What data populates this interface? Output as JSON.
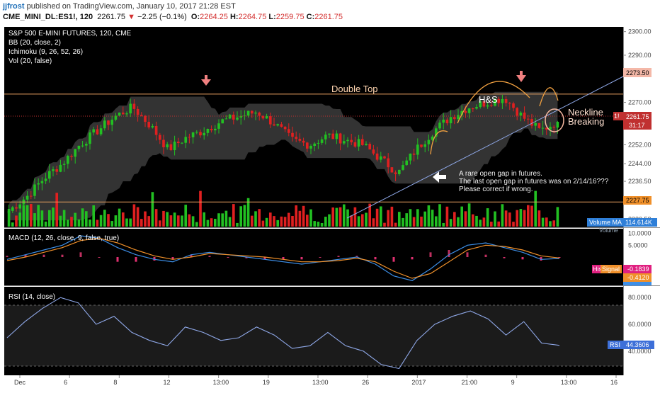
{
  "header": {
    "user": "jjfrost",
    "published": "published on TradingView.com, January 10, 2017 21:28 EST",
    "symbol": "CME_MINI_DL:ES1!, 120",
    "last": "2261.75",
    "change": "−2.25 (−0.1%)",
    "open_label": "O:",
    "open": "2264.25",
    "high_label": "H:",
    "high": "2264.75",
    "low_label": "L:",
    "low": "2259.75",
    "close_label": "C:",
    "close": "2261.75"
  },
  "legend": {
    "title": "S&P 500 E-MINI FUTURES, 120, CME",
    "bb": "BB (20, close, 2)",
    "ichimoku": "Ichimoku (9, 26, 52, 26)",
    "vol": "Vol (20, false)"
  },
  "annotations": {
    "double_top": "Double Top",
    "hs": "H&S",
    "neckline_1": "Neckline",
    "neckline_2": "Breaking",
    "gap_1": "A rare open gap in futures.",
    "gap_2": "The last open gap in futures was on 2/14/16???",
    "gap_3": "Please correct if wrong."
  },
  "price_badges": {
    "resistance": "2273.50",
    "current": "2261.75",
    "countdown": "31:17",
    "current_side": "1!",
    "support": "2227.75",
    "volume_ma_label": "Volume MA",
    "volume_ma_value": "114.614K",
    "volume_label_partial": "Volume"
  },
  "macd": {
    "title": "MACD (12, 26, close, 9, false, true)",
    "hist_label": "His",
    "signal_label": "Signal",
    "hist_value": "-0.1839",
    "signal_value": "-0.4120",
    "macd_value": "-0.5959"
  },
  "rsi": {
    "title": "RSI (14, close)",
    "label": "RSI",
    "value": "44.3606"
  },
  "colors": {
    "background": "#000000",
    "up": "#22c022",
    "down": "#e02020",
    "macd_line": "#3d8fe8",
    "signal_line": "#f0902a",
    "rsi_line": "#8fa8e8",
    "annotation": "#ffd5b0",
    "arrow_pink": "#f08080",
    "horizontal_line": "#e8a060"
  },
  "chart_data": [
    {
      "type": "candlestick",
      "title": "S&P 500 E-MINI FUTURES, 120, CME",
      "x_ticks": [
        "Dec",
        "6",
        "8",
        "12",
        "13:00",
        "19",
        "13:00",
        "26",
        "2017",
        "21:00",
        "9",
        "13:00",
        "16"
      ],
      "y_ticks": [
        "2300.00",
        "2290.00",
        "2270.00",
        "2260.00",
        "2252.00",
        "2244.00",
        "2236.50",
        "2220.50"
      ],
      "ylim": [
        2217,
        2302
      ],
      "horizontal_levels": [
        2273.5,
        2227.75
      ],
      "close_path": [
        2224,
        2230,
        2238,
        2244,
        2252,
        2258,
        2264,
        2268,
        2260,
        2250,
        2255,
        2258,
        2262,
        2264,
        2266,
        2261,
        2254,
        2252,
        2256,
        2254,
        2252,
        2246,
        2240,
        2250,
        2258,
        2264,
        2268,
        2270,
        2272,
        2264,
        2258,
        2261.75
      ],
      "last": 2261.75
    },
    {
      "type": "line",
      "title": "MACD (12, 26, close, 9, false, true)",
      "y_ticks": [
        "10.0000",
        "5.0000"
      ],
      "ylim": [
        -12,
        12
      ],
      "series": [
        {
          "name": "MACD",
          "values": [
            -1,
            1,
            3,
            5,
            9,
            8,
            4,
            1,
            -1,
            -2,
            1,
            2,
            1,
            0,
            -1,
            -2,
            -3,
            -2,
            -1,
            0,
            -3,
            -8,
            -10,
            -5,
            1,
            5,
            6,
            4,
            2,
            -1,
            -0.6
          ]
        },
        {
          "name": "Signal",
          "values": [
            -1.5,
            0,
            2,
            4,
            7,
            8,
            6,
            3,
            0.5,
            -1,
            0,
            1.5,
            1,
            0.5,
            0,
            -1,
            -2,
            -2,
            -1.5,
            -0.5,
            -2,
            -6,
            -9,
            -7,
            -2,
            3,
            5,
            4.5,
            3,
            0.5,
            -0.4
          ]
        }
      ],
      "hist": -0.1839,
      "signal": -0.412,
      "macd": -0.5959
    },
    {
      "type": "line",
      "title": "RSI (14, close)",
      "y_ticks": [
        "80.0000",
        "60.0000",
        "40.0000"
      ],
      "ylim": [
        22,
        88
      ],
      "bands": [
        70,
        30
      ],
      "series": [
        {
          "name": "RSI",
          "values": [
            50,
            62,
            72,
            80,
            76,
            60,
            66,
            54,
            48,
            44,
            58,
            54,
            48,
            50,
            58,
            52,
            42,
            44,
            54,
            44,
            40,
            30,
            27,
            48,
            60,
            66,
            70,
            64,
            52,
            62,
            46,
            44.3606
          ]
        }
      ],
      "last": 44.3606
    }
  ]
}
